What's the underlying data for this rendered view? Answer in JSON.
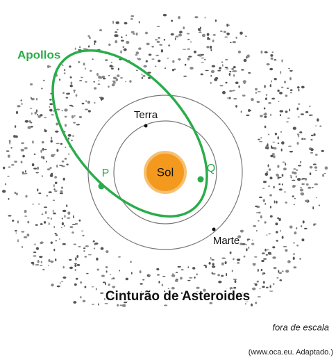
{
  "labels": {
    "orbit": "Apollos",
    "earth": "Terra",
    "sun": "Sol",
    "perihelion_point": "P",
    "aphelion_point": "Q",
    "mars": "Marte",
    "belt": "Cinturão de Asteroides"
  },
  "note": "fora de escala",
  "source": "(www.oca.eu. Adaptado.)"
}
